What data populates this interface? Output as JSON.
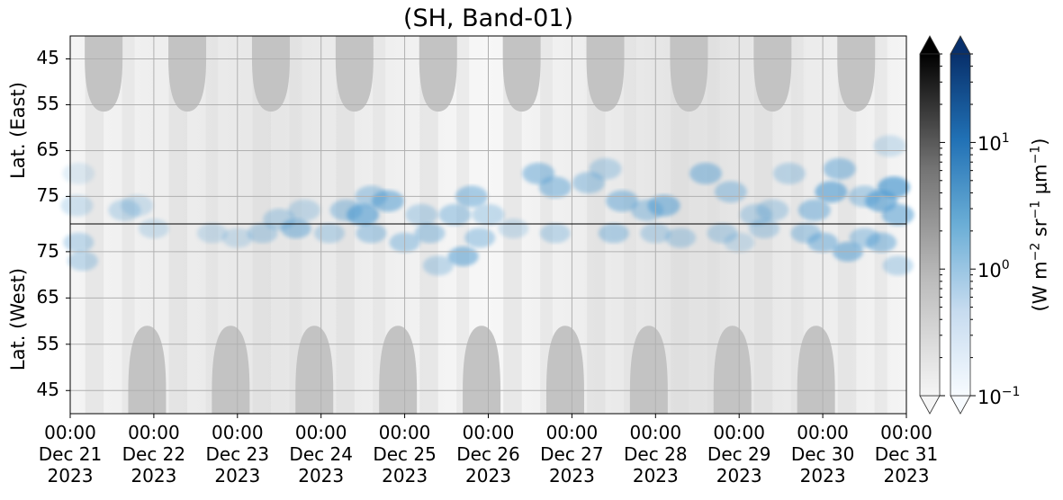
{
  "chart_data": {
    "type": "heatmap",
    "title": "(SH, Band-01)",
    "panels": [
      {
        "name": "East",
        "ylabel": "Lat. (East)",
        "yticks": [
          45,
          55,
          65,
          75
        ],
        "ylim": [
          40,
          81
        ]
      },
      {
        "name": "West",
        "ylabel": "Lat. (West)",
        "yticks": [
          75,
          65,
          55,
          45
        ],
        "ylim": [
          81,
          40
        ]
      }
    ],
    "x_ticks": [
      {
        "time": "00:00",
        "date": "Dec 21",
        "year": "2023"
      },
      {
        "time": "00:00",
        "date": "Dec 22",
        "year": "2023"
      },
      {
        "time": "00:00",
        "date": "Dec 23",
        "year": "2023"
      },
      {
        "time": "00:00",
        "date": "Dec 24",
        "year": "2023"
      },
      {
        "time": "00:00",
        "date": "Dec 25",
        "year": "2023"
      },
      {
        "time": "00:00",
        "date": "Dec 26",
        "year": "2023"
      },
      {
        "time": "00:00",
        "date": "Dec 27",
        "year": "2023"
      },
      {
        "time": "00:00",
        "date": "Dec 28",
        "year": "2023"
      },
      {
        "time": "00:00",
        "date": "Dec 29",
        "year": "2023"
      },
      {
        "time": "00:00",
        "date": "Dec 30",
        "year": "2023"
      },
      {
        "time": "00:00",
        "date": "Dec 31",
        "year": "2023"
      }
    ],
    "colorbars": [
      {
        "name": "grayscale",
        "colors": [
          "#f5f5f5",
          "#bdbdbd",
          "#737373",
          "#000000"
        ],
        "extend": "both"
      },
      {
        "name": "blues",
        "colors": [
          "#f7fbff",
          "#c6dbef",
          "#6baed6",
          "#2171b5",
          "#08306b"
        ],
        "extend": "both"
      }
    ],
    "colorbar_scale": "log",
    "colorbar_range": [
      0.1,
      50
    ],
    "colorbar_ticks": [
      {
        "base": "10",
        "exp": "1",
        "value": 10
      },
      {
        "base": "10",
        "exp": "0",
        "value": 1
      },
      {
        "base": "10",
        "exp": "−1",
        "value": 0.1
      }
    ],
    "colorbar_label": {
      "prefix": "(W m",
      "e1": "−2",
      "mid1": " sr",
      "e2": "−1",
      "mid2": " μm",
      "e3": "−1",
      "suffix": ")"
    },
    "grid": true
  }
}
